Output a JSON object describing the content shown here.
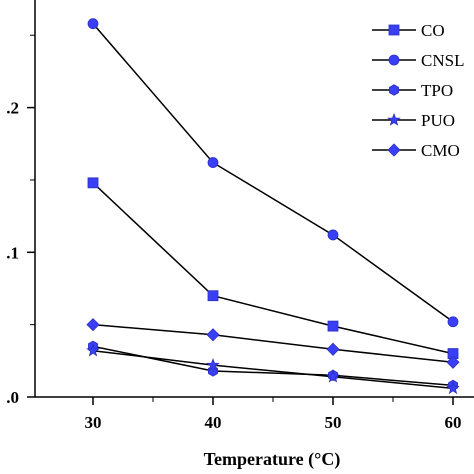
{
  "chart_data": {
    "type": "line",
    "title": "",
    "xlabel": "Temperature (°C)",
    "ylabel": "",
    "x": [
      30,
      40,
      50,
      60
    ],
    "xlim": [
      25,
      65
    ],
    "ylim": [
      0,
      0.27
    ],
    "x_ticks": [
      {
        "value": 30,
        "label": "30"
      },
      {
        "value": 40,
        "label": "40"
      },
      {
        "value": 50,
        "label": "50"
      },
      {
        "value": 60,
        "label": "60"
      }
    ],
    "y_ticks": [
      {
        "value": 0,
        "label": ".0"
      },
      {
        "value": 0.1,
        "label": ".1"
      },
      {
        "value": 0.2,
        "label": ".2"
      }
    ],
    "grid": false,
    "legend_position": "top-right",
    "series": [
      {
        "name": "CO",
        "marker": "square",
        "values": [
          0.148,
          0.07,
          0.049,
          0.03
        ]
      },
      {
        "name": "CNSL",
        "marker": "circle",
        "values": [
          0.258,
          0.162,
          0.112,
          0.052
        ]
      },
      {
        "name": "TPO",
        "marker": "hexagon",
        "values": [
          0.035,
          0.018,
          0.015,
          0.008
        ]
      },
      {
        "name": "PUO",
        "marker": "star",
        "values": [
          0.032,
          0.022,
          0.014,
          0.006
        ]
      },
      {
        "name": "CMO",
        "marker": "diamond",
        "values": [
          0.05,
          0.043,
          0.033,
          0.024
        ]
      }
    ],
    "colors": {
      "line": "#000000",
      "marker": "#3a3ff5",
      "marker_edge": "#2a2fc0"
    }
  }
}
